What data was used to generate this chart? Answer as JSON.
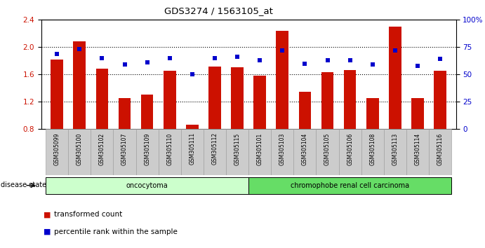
{
  "title": "GDS3274 / 1563105_at",
  "samples": [
    "GSM305099",
    "GSM305100",
    "GSM305102",
    "GSM305107",
    "GSM305109",
    "GSM305110",
    "GSM305111",
    "GSM305112",
    "GSM305115",
    "GSM305101",
    "GSM305103",
    "GSM305104",
    "GSM305105",
    "GSM305106",
    "GSM305108",
    "GSM305113",
    "GSM305114",
    "GSM305116"
  ],
  "bar_values": [
    1.82,
    2.08,
    1.68,
    1.25,
    1.3,
    1.65,
    0.86,
    1.72,
    1.7,
    1.58,
    2.24,
    1.35,
    1.63,
    1.66,
    1.25,
    2.3,
    1.25,
    1.65
  ],
  "dot_values": [
    69,
    73,
    65,
    59,
    61,
    65,
    50,
    65,
    66,
    63,
    72,
    60,
    63,
    63,
    59,
    72,
    58,
    64
  ],
  "ylim_left": [
    0.8,
    2.4
  ],
  "ylim_right": [
    0,
    100
  ],
  "yticks_left": [
    0.8,
    1.2,
    1.6,
    2.0,
    2.4
  ],
  "yticks_right": [
    0,
    25,
    50,
    75,
    100
  ],
  "ytick_labels_right": [
    "0",
    "25",
    "50",
    "75",
    "100%"
  ],
  "bar_color": "#cc1100",
  "dot_color": "#0000cc",
  "group1_label": "oncocytoma",
  "group2_label": "chromophobe renal cell carcinoma",
  "group1_count": 9,
  "group2_count": 9,
  "group1_color": "#ccffcc",
  "group2_color": "#66dd66",
  "disease_label": "disease state",
  "legend1": "transformed count",
  "legend2": "percentile rank within the sample",
  "tick_label_bg": "#cccccc"
}
